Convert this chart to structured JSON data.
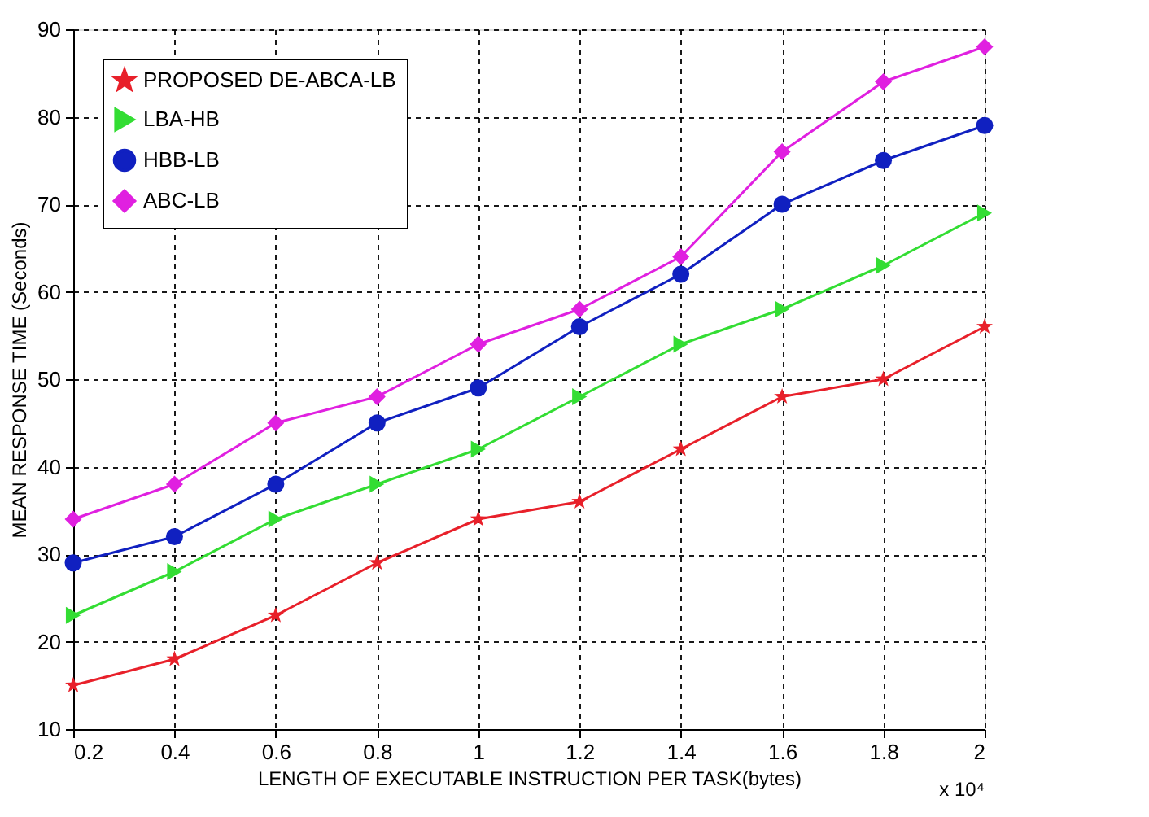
{
  "chart_data": {
    "type": "line",
    "xlabel": "LENGTH OF EXECUTABLE INSTRUCTION PER TASK(bytes)",
    "ylabel": "MEAN RESPONSE TIME  (Seconds)",
    "x": [
      0.2,
      0.4,
      0.6,
      0.8,
      1,
      1.2,
      1.4,
      1.6,
      1.8,
      2
    ],
    "series": [
      {
        "name": "PROPOSED DE-ABCA-LB",
        "color": "#e8202a",
        "marker": "star",
        "values": [
          15,
          18,
          23,
          29,
          34,
          36,
          42,
          48,
          50,
          56
        ]
      },
      {
        "name": "LBA-HB",
        "color": "#33dd33",
        "marker": "triangle",
        "values": [
          23,
          28,
          34,
          38,
          42,
          48,
          54,
          58,
          63,
          69
        ]
      },
      {
        "name": "HBB-LB",
        "color": "#1020c0",
        "marker": "circle",
        "values": [
          29,
          32,
          38,
          45,
          49,
          56,
          62,
          70,
          75,
          79
        ]
      },
      {
        "name": "ABC-LB",
        "color": "#e020e0",
        "marker": "diamond",
        "values": [
          34,
          38,
          45,
          48,
          54,
          58,
          64,
          76,
          84,
          88
        ]
      }
    ],
    "xlim": [
      0.2,
      2
    ],
    "xticks": [
      0.2,
      0.4,
      0.6,
      0.8,
      1,
      1.2,
      1.4,
      1.6,
      1.8,
      2
    ],
    "ylim": [
      10,
      90
    ],
    "yticks": [
      10,
      20,
      30,
      40,
      50,
      60,
      70,
      80,
      90
    ],
    "grid": true,
    "legend": "top left",
    "line_style": "solid",
    "annotations": [
      "x 10⁴"
    ]
  }
}
